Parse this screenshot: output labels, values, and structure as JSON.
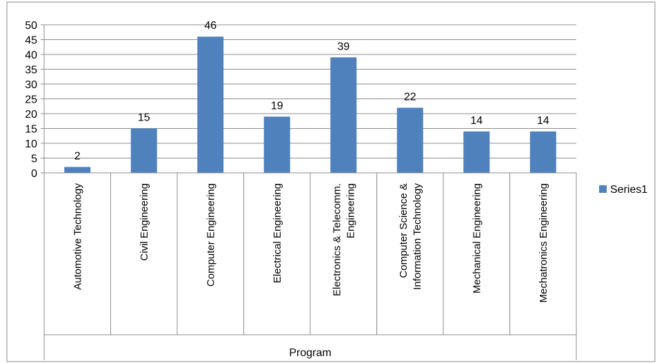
{
  "chart_data": {
    "type": "bar",
    "title": "",
    "xlabel": "Program",
    "ylabel": "",
    "ylim": [
      0,
      50
    ],
    "ytick_step": 5,
    "grid": true,
    "legend": "right",
    "bar_color": "#4f81bd",
    "categories": [
      [
        "Automotive Technology"
      ],
      [
        "Civil Engineering"
      ],
      [
        "Computer Engineering"
      ],
      [
        "Electrical Engineering"
      ],
      [
        "Electronics & Telecomm.",
        "Engineering"
      ],
      [
        "Computer Science &",
        "Information Technology"
      ],
      [
        "Mechanical Engineering"
      ],
      [
        "Mechatronics Engineering"
      ]
    ],
    "series": [
      {
        "name": "Series1",
        "values": [
          2,
          15,
          46,
          19,
          39,
          22,
          14,
          14
        ]
      }
    ]
  }
}
